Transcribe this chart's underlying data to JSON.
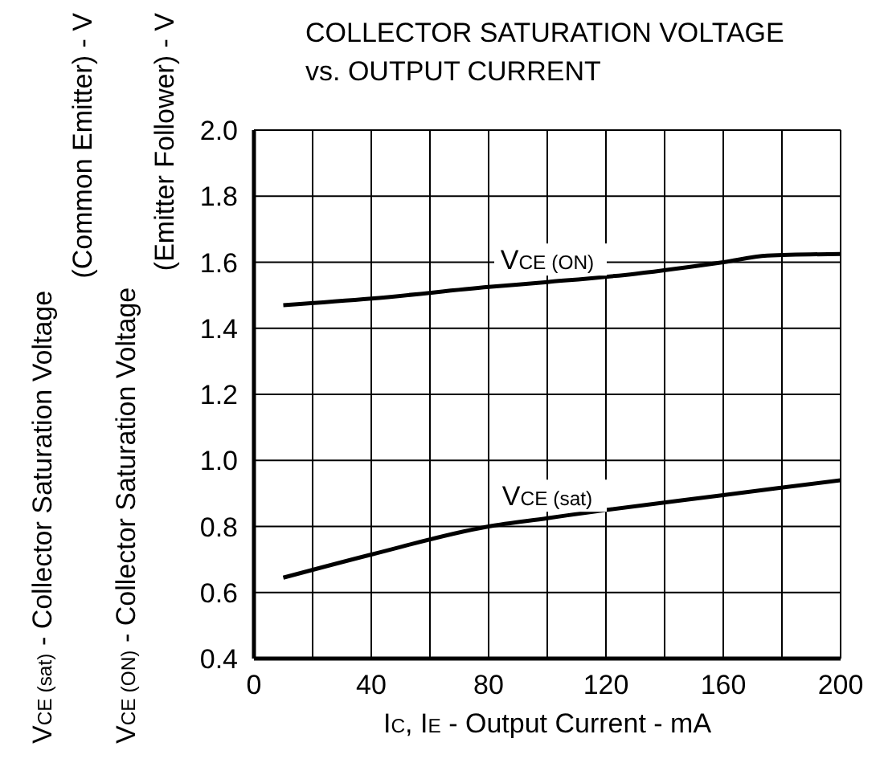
{
  "chart_data": {
    "type": "line",
    "title": "COLLECTOR SATURATION VOLTAGE\nvs. OUTPUT CURRENT",
    "xlabel": "I$_{C}$, I$_{E}$ - Output Current - mA",
    "ylabel": "V$_{CE (sat)}$ - Collector Saturation Voltage\n(Common Emitter) - V\nV$_{CE (ON)}$ - Collector Saturation Voltage\n(Emitter Follower) - V",
    "series": [
      {
        "name": "V$_{CE (ON)}$",
        "color": "#000000",
        "x": [
          10,
          40,
          80,
          100,
          130,
          160,
          175,
          200
        ],
        "values": [
          1.47,
          1.49,
          1.525,
          1.54,
          1.565,
          1.6,
          1.62,
          1.625
        ]
      },
      {
        "name": "V$_{CE (sat)}$",
        "color": "#000000",
        "x": [
          10,
          40,
          80,
          100,
          120,
          160,
          200
        ],
        "values": [
          0.645,
          0.715,
          0.8,
          0.825,
          0.85,
          0.895,
          0.94
        ]
      }
    ],
    "xlim": [
      0,
      200
    ],
    "xticks": [
      0,
      {
        "value": 20,
        "label": null
      },
      40,
      {
        "value": 60,
        "label": null
      },
      80,
      {
        "value": 100,
        "label": null
      },
      120,
      {
        "value": 140,
        "label": null
      },
      160,
      {
        "value": 180,
        "label": null
      },
      200
    ],
    "ylim": [
      0.4,
      2.0
    ],
    "yticks": [
      {
        "value": 0.4,
        "label": "0.4"
      },
      {
        "value": 0.6,
        "label": "0.6"
      },
      {
        "value": 0.8,
        "label": "0.8"
      },
      {
        "value": 1.0,
        "label": "1.0"
      },
      {
        "value": 1.2,
        "label": "1.2"
      },
      {
        "value": 1.4,
        "label": "1.4"
      },
      {
        "value": 1.6,
        "label": "1.6"
      },
      {
        "value": 1.8,
        "label": "1.8"
      },
      {
        "value": 2.0,
        "label": "2.0"
      }
    ],
    "grid": true,
    "marker": "none",
    "line_style": "solid"
  }
}
